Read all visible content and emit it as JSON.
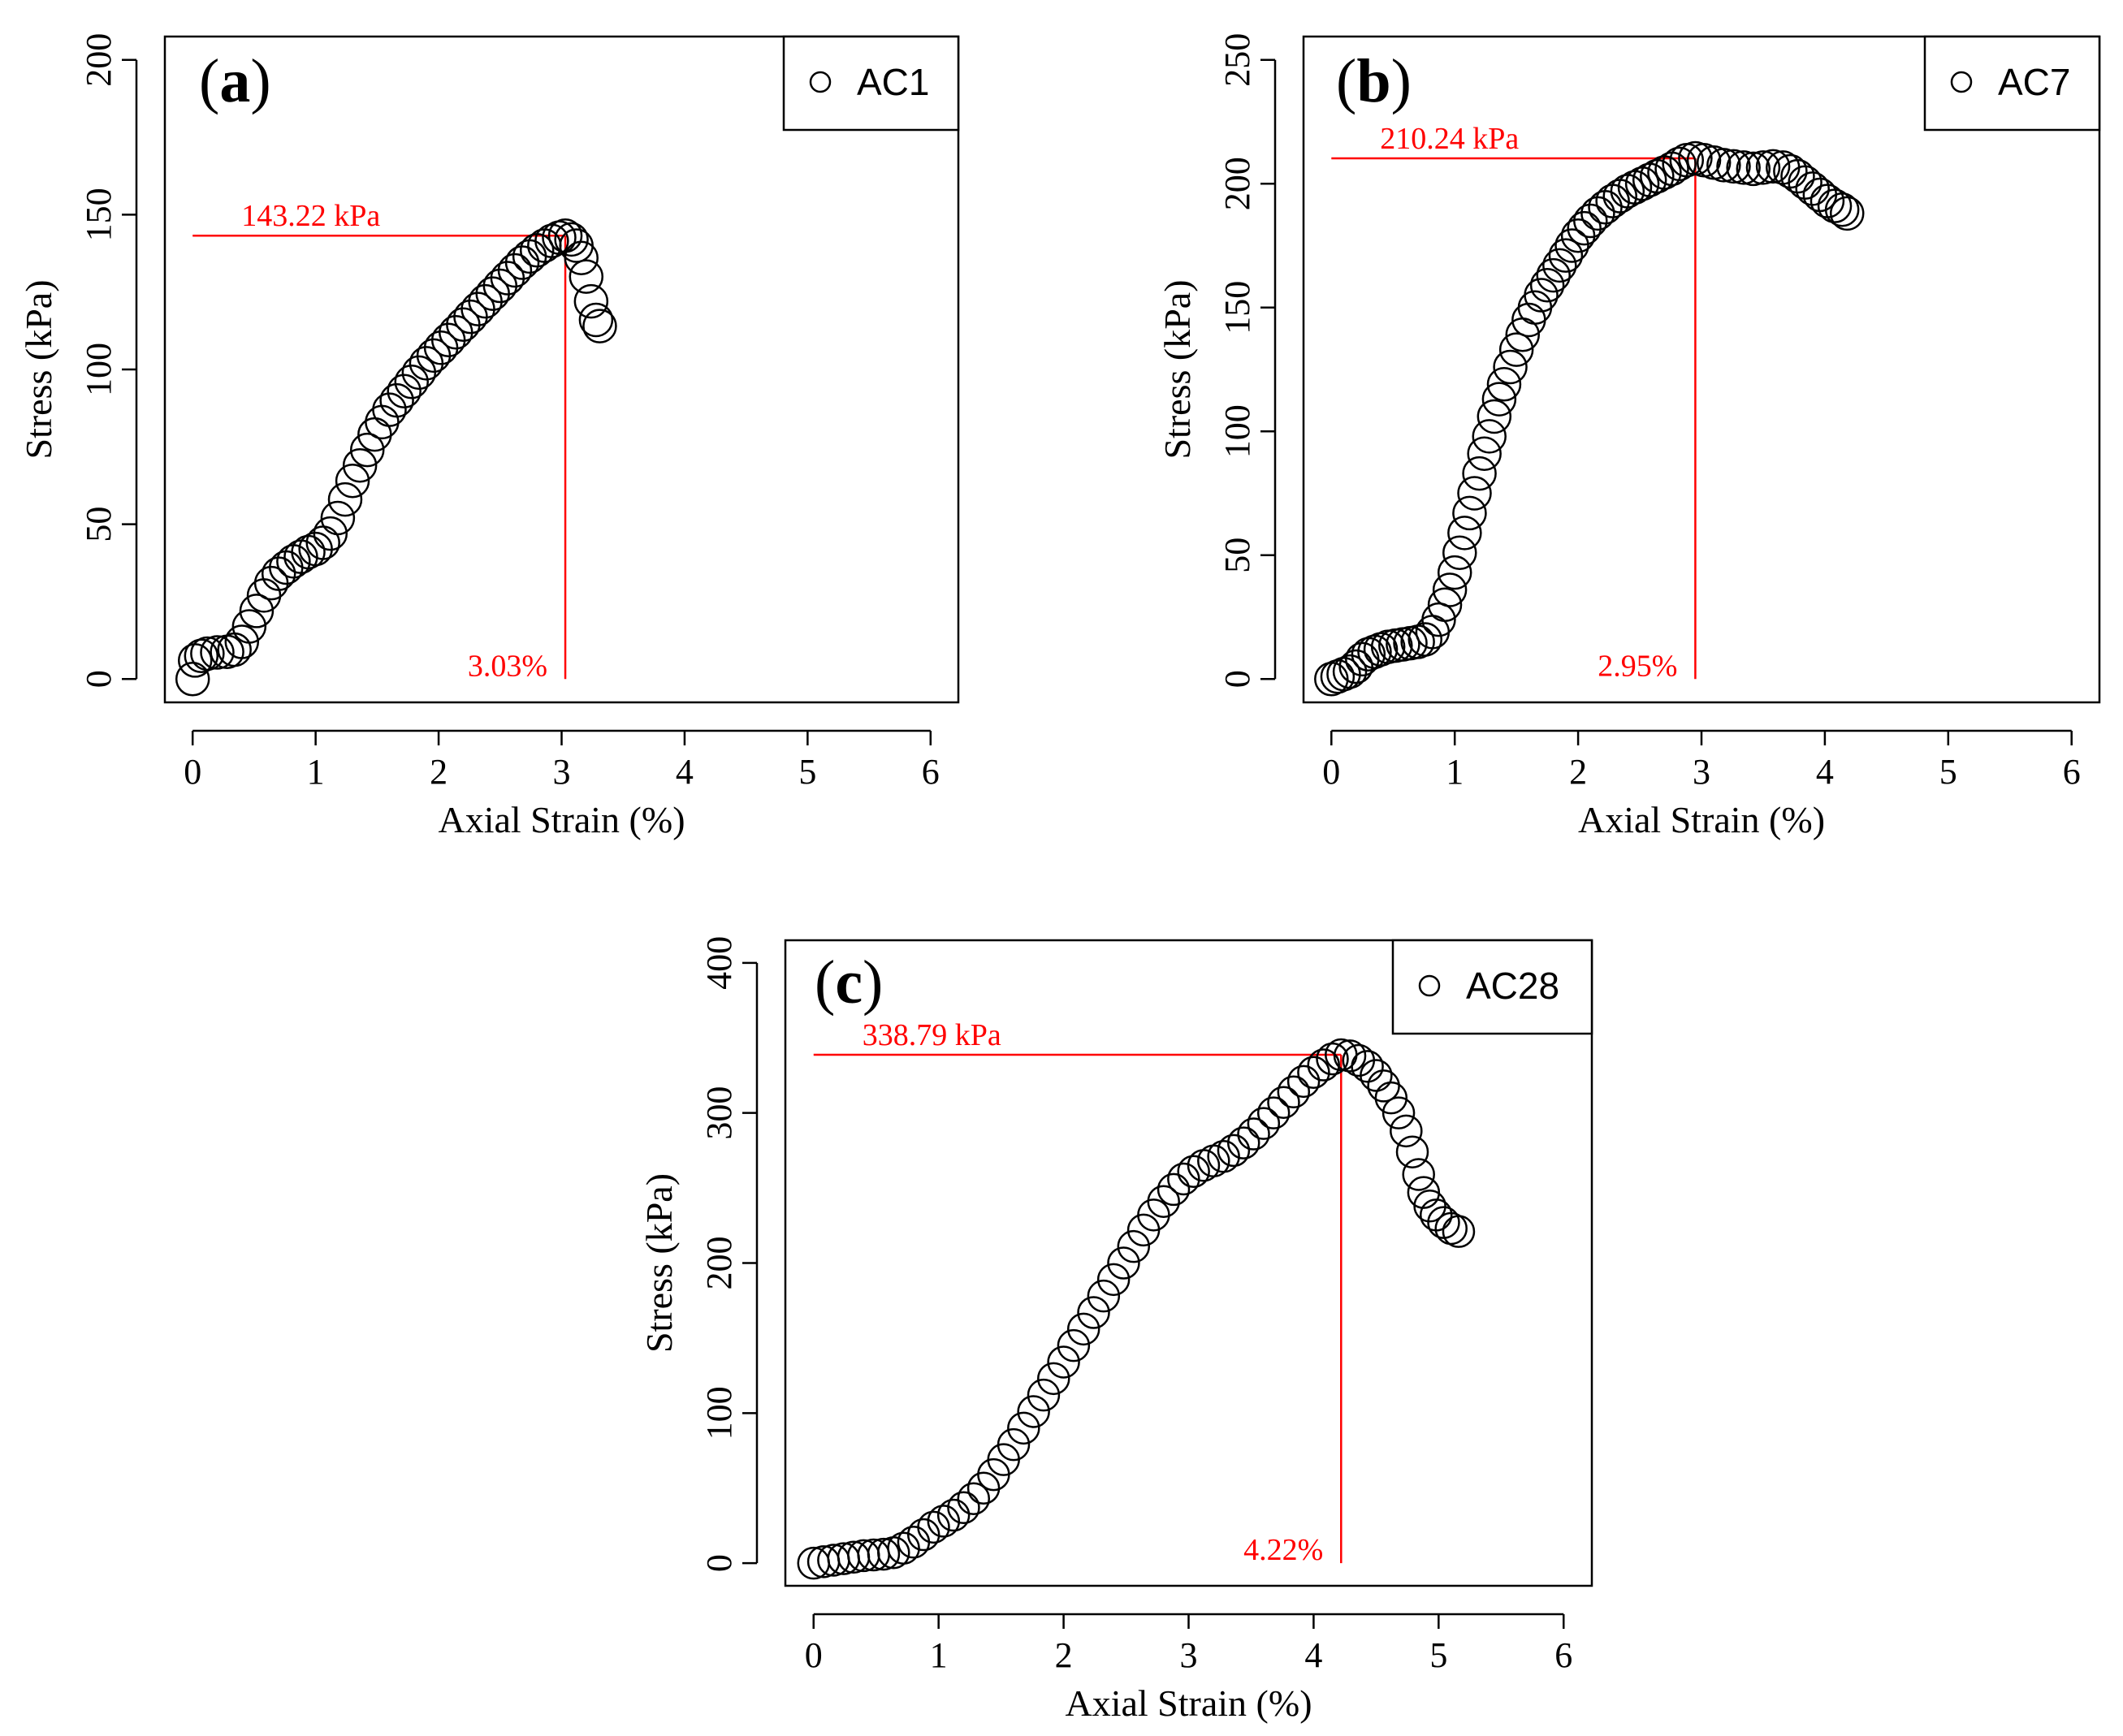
{
  "chart_data": [
    {
      "type": "scatter",
      "panel_label": "a",
      "xlabel": "Axial Strain (%)",
      "ylabel": "Stress (kPa)",
      "xlim": [
        0,
        6
      ],
      "ylim": [
        0,
        200
      ],
      "x_ticks": [
        "0",
        "1",
        "2",
        "3",
        "4",
        "5",
        "6"
      ],
      "y_ticks": [
        "0",
        "50",
        "100",
        "150",
        "200"
      ],
      "legend": {
        "label": "AC1",
        "position": "top-right"
      },
      "peak": {
        "stress": 143.22,
        "strain": 3.03,
        "stress_label": "143.22 kPa",
        "strain_label": "3.03%"
      },
      "series": [
        {
          "name": "AC1",
          "marker": "open-circle",
          "points": [
            [
              0,
              0
            ],
            [
              0.02,
              6
            ],
            [
              0.07,
              7.5
            ],
            [
              0.12,
              8.2
            ],
            [
              0.2,
              8.6
            ],
            [
              0.28,
              8.8
            ],
            [
              0.34,
              9.5
            ],
            [
              0.4,
              12
            ],
            [
              0.46,
              17
            ],
            [
              0.52,
              22
            ],
            [
              0.58,
              27
            ],
            [
              0.64,
              31
            ],
            [
              0.7,
              34
            ],
            [
              0.76,
              36
            ],
            [
              0.82,
              38
            ],
            [
              0.88,
              39.5
            ],
            [
              0.94,
              41
            ],
            [
              1.0,
              42
            ],
            [
              1.06,
              44
            ],
            [
              1.12,
              47
            ],
            [
              1.18,
              52
            ],
            [
              1.24,
              58
            ],
            [
              1.3,
              64
            ],
            [
              1.36,
              69
            ],
            [
              1.42,
              74
            ],
            [
              1.48,
              79
            ],
            [
              1.54,
              83
            ],
            [
              1.6,
              87
            ],
            [
              1.66,
              90
            ],
            [
              1.72,
              93
            ],
            [
              1.78,
              96
            ],
            [
              1.84,
              99
            ],
            [
              1.9,
              102
            ],
            [
              1.96,
              104.5
            ],
            [
              2.02,
              107
            ],
            [
              2.08,
              109.5
            ],
            [
              2.14,
              112
            ],
            [
              2.2,
              114.5
            ],
            [
              2.26,
              117
            ],
            [
              2.32,
              119.5
            ],
            [
              2.38,
              122
            ],
            [
              2.44,
              124.5
            ],
            [
              2.5,
              127
            ],
            [
              2.56,
              129.5
            ],
            [
              2.62,
              132
            ],
            [
              2.68,
              134.5
            ],
            [
              2.74,
              136.5
            ],
            [
              2.8,
              138.5
            ],
            [
              2.86,
              140
            ],
            [
              2.92,
              141.5
            ],
            [
              2.98,
              142.6
            ],
            [
              3.03,
              143.22
            ],
            [
              3.08,
              142
            ],
            [
              3.12,
              140
            ],
            [
              3.16,
              136
            ],
            [
              3.2,
              130
            ],
            [
              3.24,
              122
            ],
            [
              3.28,
              116
            ],
            [
              3.31,
              114
            ]
          ]
        }
      ]
    },
    {
      "type": "scatter",
      "panel_label": "b",
      "xlabel": "Axial Strain (%)",
      "ylabel": "Stress (kPa)",
      "xlim": [
        0,
        6
      ],
      "ylim": [
        0,
        250
      ],
      "x_ticks": [
        "0",
        "1",
        "2",
        "3",
        "4",
        "5",
        "6"
      ],
      "y_ticks": [
        "0",
        "50",
        "100",
        "150",
        "200",
        "250"
      ],
      "legend": {
        "label": "AC7",
        "position": "top-right"
      },
      "peak": {
        "stress": 210.24,
        "strain": 2.95,
        "stress_label": "210.24 kPa",
        "strain_label": "2.95%"
      },
      "series": [
        {
          "name": "AC7",
          "marker": "open-circle",
          "points": [
            [
              0,
              0
            ],
            [
              0.05,
              1
            ],
            [
              0.1,
              2
            ],
            [
              0.15,
              3
            ],
            [
              0.2,
              5
            ],
            [
              0.25,
              8
            ],
            [
              0.3,
              10
            ],
            [
              0.35,
              11
            ],
            [
              0.4,
              12
            ],
            [
              0.46,
              13
            ],
            [
              0.52,
              13.5
            ],
            [
              0.58,
              14
            ],
            [
              0.64,
              14.5
            ],
            [
              0.7,
              15
            ],
            [
              0.76,
              16
            ],
            [
              0.82,
              19
            ],
            [
              0.87,
              24
            ],
            [
              0.92,
              30
            ],
            [
              0.96,
              36
            ],
            [
              1.0,
              43
            ],
            [
              1.04,
              51
            ],
            [
              1.08,
              59
            ],
            [
              1.12,
              67
            ],
            [
              1.16,
              75
            ],
            [
              1.2,
              83
            ],
            [
              1.24,
              91
            ],
            [
              1.28,
              98
            ],
            [
              1.32,
              106
            ],
            [
              1.36,
              113
            ],
            [
              1.4,
              119
            ],
            [
              1.45,
              126
            ],
            [
              1.5,
              133
            ],
            [
              1.55,
              139
            ],
            [
              1.6,
              145
            ],
            [
              1.65,
              150
            ],
            [
              1.7,
              155
            ],
            [
              1.75,
              159
            ],
            [
              1.8,
              163
            ],
            [
              1.85,
              167
            ],
            [
              1.9,
              171
            ],
            [
              1.95,
              175
            ],
            [
              2.0,
              179
            ],
            [
              2.05,
              182
            ],
            [
              2.1,
              185
            ],
            [
              2.16,
              188
            ],
            [
              2.22,
              190.5
            ],
            [
              2.28,
              193
            ],
            [
              2.34,
              195
            ],
            [
              2.4,
              197
            ],
            [
              2.46,
              198.5
            ],
            [
              2.52,
              200
            ],
            [
              2.58,
              201.5
            ],
            [
              2.64,
              203
            ],
            [
              2.7,
              204.5
            ],
            [
              2.76,
              206
            ],
            [
              2.82,
              208
            ],
            [
              2.88,
              209.5
            ],
            [
              2.95,
              210.24
            ],
            [
              3.02,
              209.5
            ],
            [
              3.1,
              208.5
            ],
            [
              3.18,
              207.5
            ],
            [
              3.26,
              207
            ],
            [
              3.34,
              206.5
            ],
            [
              3.42,
              206
            ],
            [
              3.5,
              206.5
            ],
            [
              3.58,
              207
            ],
            [
              3.66,
              206.5
            ],
            [
              3.72,
              205
            ],
            [
              3.78,
              203
            ],
            [
              3.84,
              200.5
            ],
            [
              3.9,
              198
            ],
            [
              3.96,
              195.5
            ],
            [
              4.02,
              193
            ],
            [
              4.08,
              191
            ],
            [
              4.14,
              189.5
            ],
            [
              4.18,
              188
            ]
          ]
        }
      ]
    },
    {
      "type": "scatter",
      "panel_label": "c",
      "xlabel": "Axial Strain (%)",
      "ylabel": "Stress (kPa)",
      "xlim": [
        0,
        6
      ],
      "ylim": [
        0,
        400
      ],
      "x_ticks": [
        "0",
        "1",
        "2",
        "3",
        "4",
        "5",
        "6"
      ],
      "y_ticks": [
        "0",
        "100",
        "200",
        "300",
        "400"
      ],
      "legend": {
        "label": "AC28",
        "position": "top-right"
      },
      "peak": {
        "stress": 338.79,
        "strain": 4.22,
        "stress_label": "338.79 kPa",
        "strain_label": "4.22%"
      },
      "series": [
        {
          "name": "AC28",
          "marker": "open-circle",
          "points": [
            [
              0,
              0
            ],
            [
              0.08,
              1
            ],
            [
              0.16,
              2
            ],
            [
              0.24,
              3
            ],
            [
              0.32,
              4
            ],
            [
              0.4,
              5
            ],
            [
              0.48,
              5.5
            ],
            [
              0.56,
              6
            ],
            [
              0.64,
              7
            ],
            [
              0.72,
              10
            ],
            [
              0.8,
              14
            ],
            [
              0.88,
              19
            ],
            [
              0.96,
              24
            ],
            [
              1.04,
              28
            ],
            [
              1.12,
              32
            ],
            [
              1.2,
              37
            ],
            [
              1.28,
              43
            ],
            [
              1.36,
              50
            ],
            [
              1.44,
              59
            ],
            [
              1.52,
              69
            ],
            [
              1.6,
              79
            ],
            [
              1.68,
              90
            ],
            [
              1.76,
              101
            ],
            [
              1.84,
              112
            ],
            [
              1.92,
              123
            ],
            [
              2.0,
              134
            ],
            [
              2.08,
              145
            ],
            [
              2.16,
              156
            ],
            [
              2.24,
              167
            ],
            [
              2.32,
              178
            ],
            [
              2.4,
              189
            ],
            [
              2.48,
              200
            ],
            [
              2.56,
              211
            ],
            [
              2.64,
              222
            ],
            [
              2.72,
              232
            ],
            [
              2.8,
              241
            ],
            [
              2.88,
              249
            ],
            [
              2.96,
              256
            ],
            [
              3.04,
              261
            ],
            [
              3.12,
              265
            ],
            [
              3.2,
              268
            ],
            [
              3.28,
              271
            ],
            [
              3.36,
              275
            ],
            [
              3.44,
              280
            ],
            [
              3.52,
              286
            ],
            [
              3.6,
              293
            ],
            [
              3.68,
              300
            ],
            [
              3.76,
              307
            ],
            [
              3.84,
              314
            ],
            [
              3.92,
              321
            ],
            [
              4.0,
              327
            ],
            [
              4.08,
              332
            ],
            [
              4.15,
              336
            ],
            [
              4.22,
              338.79
            ],
            [
              4.29,
              338
            ],
            [
              4.36,
              335
            ],
            [
              4.43,
              331
            ],
            [
              4.5,
              325
            ],
            [
              4.56,
              318
            ],
            [
              4.62,
              310
            ],
            [
              4.68,
              300
            ],
            [
              4.74,
              288
            ],
            [
              4.79,
              274
            ],
            [
              4.84,
              259
            ],
            [
              4.88,
              247
            ],
            [
              4.93,
              238
            ],
            [
              4.98,
              232
            ],
            [
              5.04,
              227
            ],
            [
              5.1,
              223
            ],
            [
              5.16,
              221
            ]
          ]
        }
      ]
    }
  ]
}
